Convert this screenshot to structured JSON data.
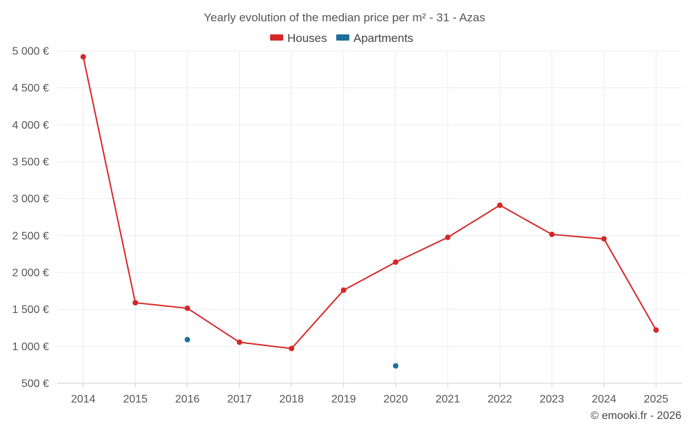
{
  "chart_data": {
    "type": "line",
    "title": "Yearly evolution of the median price per m² - 31 - Azas",
    "x": [
      "2014",
      "2015",
      "2016",
      "2017",
      "2018",
      "2019",
      "2020",
      "2021",
      "2022",
      "2023",
      "2024",
      "2025"
    ],
    "ylim": [
      500,
      5000
    ],
    "yticks": [
      500,
      1000,
      1500,
      2000,
      2500,
      3000,
      3500,
      4000,
      4500,
      5000
    ],
    "ytick_labels": [
      "500 €",
      "1 000 €",
      "1 500 €",
      "2 000 €",
      "2 500 €",
      "3 000 €",
      "3 500 €",
      "4 000 €",
      "4 500 €",
      "5 000 €"
    ],
    "grid": true,
    "legend_position": "top-center",
    "series": [
      {
        "name": "Houses",
        "color": "#d62728",
        "values": [
          4920,
          1590,
          1515,
          1055,
          970,
          1760,
          2140,
          2475,
          2910,
          2515,
          2455,
          1220
        ]
      },
      {
        "name": "Apartments",
        "color": "#1f6e9c",
        "values": [
          null,
          null,
          1090,
          null,
          null,
          null,
          735,
          null,
          null,
          null,
          null,
          null
        ]
      }
    ]
  },
  "credit": "© emooki.fr - 2026"
}
